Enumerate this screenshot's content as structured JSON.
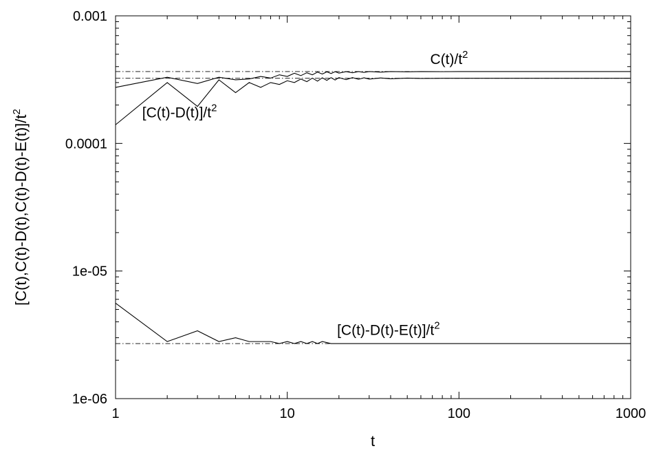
{
  "chart_data": {
    "type": "line",
    "xlabel": "t",
    "ylabel": "[C(t),C(t)-D(t),C(t)-D(t)-E(t)]/t",
    "ylabel_sup": "2",
    "x_scale": "log",
    "y_scale": "log",
    "xlim": [
      1,
      1000
    ],
    "ylim": [
      1e-06,
      0.001
    ],
    "x_ticks": [
      1,
      10,
      100,
      1000
    ],
    "x_tick_labels": [
      "1",
      "10",
      "100",
      "1000"
    ],
    "y_ticks": [
      1e-06,
      1e-05,
      0.0001,
      0.001
    ],
    "y_tick_labels": [
      "1e-06",
      "1e-05",
      "0.0001",
      "0.001"
    ],
    "grid": false,
    "legend": "none",
    "annotations": [
      {
        "text": "C(t)/t",
        "sup": "2",
        "x": 68,
        "y": 0.00042
      },
      {
        "text": "[C(t)-D(t)]/t",
        "sup": "2",
        "x": 1.43,
        "y": 0.00016
      },
      {
        "text": "[C(t)-D(t)-E(t)]/t",
        "sup": "2",
        "x": 19.5,
        "y": 3.15e-06
      }
    ],
    "series": [
      {
        "style": "solid",
        "x": [
          1,
          2,
          3,
          4,
          5,
          6,
          7,
          8,
          9,
          10,
          11,
          12,
          13,
          14,
          15,
          16,
          17,
          18,
          19,
          20,
          22,
          24,
          26,
          28,
          30,
          35,
          40,
          50,
          60,
          80,
          100,
          200,
          500,
          1000
        ],
        "y": [
          0.000275,
          0.00033,
          0.000295,
          0.00033,
          0.000315,
          0.00032,
          0.000335,
          0.000325,
          0.000345,
          0.000335,
          0.000355,
          0.00034,
          0.000358,
          0.000345,
          0.000362,
          0.00035,
          0.000364,
          0.000353,
          0.000365,
          0.000356,
          0.000365,
          0.000358,
          0.000366,
          0.00036,
          0.000366,
          0.000362,
          0.000366,
          0.000364,
          0.000366,
          0.000365,
          0.000366,
          0.000366,
          0.000366,
          0.000366
        ]
      },
      {
        "style": "solid",
        "x": [
          1,
          2,
          3,
          4,
          5,
          6,
          7,
          8,
          9,
          10,
          11,
          12,
          13,
          14,
          15,
          16,
          17,
          18,
          19,
          20,
          22,
          24,
          26,
          28,
          30,
          35,
          40,
          50,
          60,
          80,
          100,
          200,
          500,
          1000
        ],
        "y": [
          0.00014,
          0.0003,
          0.000195,
          0.000315,
          0.00025,
          0.0003,
          0.000275,
          0.0003,
          0.00029,
          0.00031,
          0.0003,
          0.00032,
          0.000305,
          0.000325,
          0.000308,
          0.000327,
          0.000312,
          0.000328,
          0.000314,
          0.000328,
          0.000316,
          0.000328,
          0.000318,
          0.000327,
          0.000319,
          0.000326,
          0.000321,
          0.000325,
          0.000323,
          0.000324,
          0.000324,
          0.000324,
          0.000324,
          0.000324
        ]
      },
      {
        "style": "solid",
        "x": [
          1,
          2,
          3,
          4,
          5,
          6,
          7,
          8,
          9,
          10,
          11,
          12,
          13,
          14,
          15,
          16,
          18,
          20,
          22,
          24,
          26,
          30,
          40,
          60,
          100,
          200,
          500,
          1000
        ],
        "y": [
          5.6e-06,
          2.8e-06,
          3.4e-06,
          2.8e-06,
          3e-06,
          2.8e-06,
          2.8e-06,
          2.8e-06,
          2.7e-06,
          2.8e-06,
          2.7e-06,
          2.8e-06,
          2.7e-06,
          2.8e-06,
          2.7e-06,
          2.8e-06,
          2.7e-06,
          2.7e-06,
          2.7e-06,
          2.7e-06,
          2.7e-06,
          2.7e-06,
          2.7e-06,
          2.7e-06,
          2.7e-06,
          2.7e-06,
          2.7e-06,
          2.7e-06
        ]
      }
    ],
    "reference_lines": [
      {
        "style": "dash-dot",
        "y": 0.000366
      },
      {
        "style": "dash-dot",
        "y": 0.000324
      },
      {
        "style": "dash-dot",
        "y": 2.7e-06
      }
    ]
  }
}
